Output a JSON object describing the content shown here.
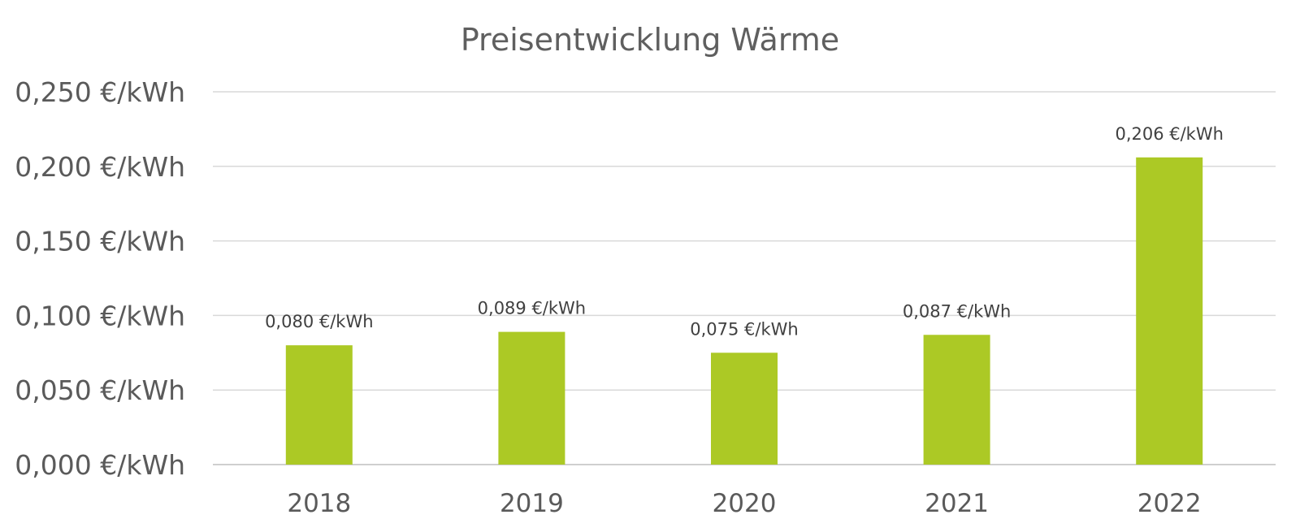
{
  "chart_data": {
    "type": "bar",
    "title": "Preisentwicklung Wärme",
    "xlabel": "",
    "ylabel": "",
    "categories": [
      "2018",
      "2019",
      "2020",
      "2021",
      "2022"
    ],
    "values": [
      0.08,
      0.089,
      0.075,
      0.087,
      0.206
    ],
    "data_labels": [
      "0,080 €/kWh",
      "0,089 €/kWh",
      "0,075 €/kWh",
      "0,087 €/kWh",
      "0,206 €/kWh"
    ],
    "ylim": [
      0,
      0.25
    ],
    "yticks": [
      0,
      0.05,
      0.1,
      0.15,
      0.2,
      0.25
    ],
    "ytick_labels": [
      "0,000 €/kWh",
      "0,050 €/kWh",
      "0,100 €/kWh",
      "0,150 €/kWh",
      "0,200 €/kWh",
      "0,250 €/kWh"
    ],
    "grid": true,
    "legend": "none",
    "bar_color": "#acc925"
  }
}
